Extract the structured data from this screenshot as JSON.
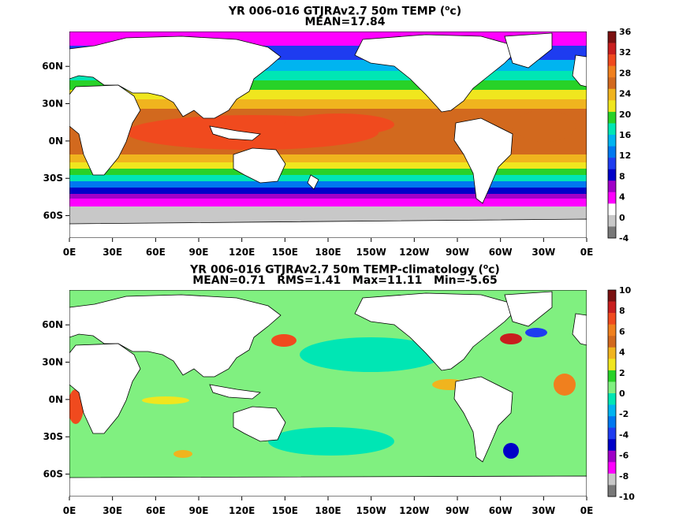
{
  "chart_data": [
    {
      "type": "heatmap",
      "title_line1_prefix": "YR 006-016 GTJRAv2.7 50m TEMP (",
      "title_line1_sup": "o",
      "title_line1_suffix": "c)",
      "title_line2": "MEAN=17.84",
      "x_ticks": [
        "0E",
        "30E",
        "60E",
        "90E",
        "120E",
        "150E",
        "180E",
        "150W",
        "120W",
        "90W",
        "60W",
        "30W",
        "0E"
      ],
      "y_ticks": [
        "60N",
        "30N",
        "0N",
        "30S",
        "60S"
      ],
      "colorbar_ticks": [
        "36",
        "32",
        "28",
        "24",
        "20",
        "16",
        "12",
        "8",
        "4",
        "0",
        "-4"
      ],
      "colorbar_colors": [
        "#7a1010",
        "#c81e1e",
        "#f04a1e",
        "#f0801e",
        "#d2691e",
        "#f0b41e",
        "#f0e61e",
        "#28d228",
        "#00e6b4",
        "#00b4f0",
        "#0078f0",
        "#1e3cf0",
        "#0000c8",
        "#a000c8",
        "#ff00ff",
        "#ffffff",
        "#c8c8c8",
        "#787878"
      ],
      "zlim": [
        -4,
        36
      ]
    },
    {
      "type": "heatmap",
      "title_line1_prefix": "YR 006-016 GTJRAv2.7 50m TEMP-climatology (",
      "title_line1_sup": "o",
      "title_line1_suffix": "c)",
      "title_line2": "MEAN=0.71   RMS=1.41   Max=11.11   Min=-5.65",
      "x_ticks": [
        "0E",
        "30E",
        "60E",
        "90E",
        "120E",
        "150E",
        "180E",
        "150W",
        "120W",
        "90W",
        "60W",
        "30W",
        "0E"
      ],
      "y_ticks": [
        "60N",
        "30N",
        "0N",
        "30S",
        "60S"
      ],
      "colorbar_ticks": [
        "10",
        "8",
        "6",
        "4",
        "2",
        "0",
        "-2",
        "-4",
        "-6",
        "-8",
        "-10"
      ],
      "colorbar_colors": [
        "#7a1010",
        "#c81e1e",
        "#f04a1e",
        "#f0801e",
        "#d2691e",
        "#f0b41e",
        "#f0e61e",
        "#28d228",
        "#80f080",
        "#00e6b4",
        "#00b4f0",
        "#0078f0",
        "#1e3cf0",
        "#0000c8",
        "#a000c8",
        "#ff00ff",
        "#c8c8c8",
        "#787878"
      ],
      "zlim": [
        -10,
        10
      ]
    }
  ]
}
